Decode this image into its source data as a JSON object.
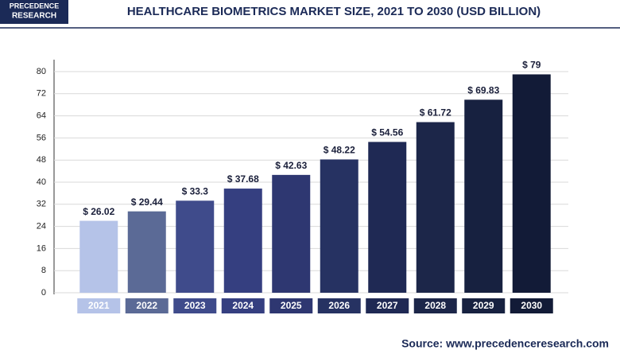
{
  "logo": {
    "line1": "PRECEDENCE",
    "line2": "RESEARCH"
  },
  "source": "Source: www.precedenceresearch.com",
  "chart_data": {
    "type": "bar",
    "title": "HEALTHCARE BIOMETRICS MARKET SIZE, 2021 TO 2030 (USD BILLION)",
    "categories": [
      "2021",
      "2022",
      "2023",
      "2024",
      "2025",
      "2026",
      "2027",
      "2028",
      "2029",
      "2030"
    ],
    "values": [
      26.02,
      29.44,
      33.3,
      37.68,
      42.63,
      48.22,
      54.56,
      61.72,
      69.83,
      79
    ],
    "value_labels": [
      "$ 26.02",
      "$ 29.44",
      "$ 33.3",
      "$ 37.68",
      "$ 42.63",
      "$ 48.22",
      "$ 54.56",
      "$ 61.72",
      "$ 69.83",
      "$ 79"
    ],
    "colors": [
      "#b5c3e8",
      "#5b6a96",
      "#3f4b8b",
      "#353f80",
      "#2e3771",
      "#263262",
      "#1f2954",
      "#1c2649",
      "#172140",
      "#121b37"
    ],
    "ylim": [
      0,
      80
    ],
    "yticks": [
      0,
      8,
      16,
      24,
      32,
      40,
      48,
      56,
      64,
      72,
      80
    ],
    "grid": true
  }
}
